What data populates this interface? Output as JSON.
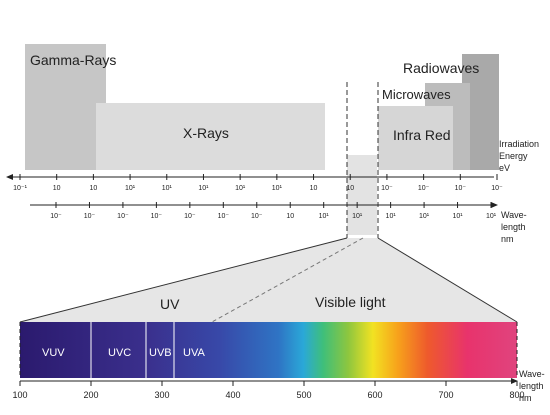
{
  "bands": {
    "gamma": "Gamma-Rays",
    "xrays": "X-Rays",
    "radio": "Radiowaves",
    "micro": "Microwaves",
    "infrared": "Infra Red"
  },
  "energy_axis": {
    "label": [
      "Irradiation",
      "Energy",
      "eV"
    ],
    "ticks": [
      "10⁻¹",
      "10⁻¹",
      "10⁻",
      "10⁻",
      "10⁻",
      "10⁻",
      "10⁻",
      "10⁻",
      "10⁻",
      "10⁻",
      "10⁻",
      "10⁻",
      "10⁻",
      "10⁻",
      "10⁻"
    ]
  },
  "energy_ticks_text": [
    "10⁻¹",
    "10",
    "10",
    "10¹",
    "10¹",
    "10¹",
    "10¹",
    "10¹",
    "10",
    "10",
    "10⁻",
    "10⁻",
    "10⁻",
    "10⁻"
  ],
  "wavelength_axis": {
    "label": [
      "Wave-",
      "length",
      "nm"
    ],
    "ticks": [
      "10⁻",
      "10⁻",
      "10⁻",
      "10⁻",
      "10⁻",
      "10⁻",
      "10⁻",
      "10",
      "10¹",
      "10¹",
      "10¹",
      "10¹",
      "10¹",
      "10¹"
    ]
  },
  "zoom": {
    "uv_label": "UV",
    "visible_label": "Visible light",
    "segments": [
      "VUV",
      "UVC",
      "UVB",
      "UVA"
    ],
    "axis_label": [
      "Wave-",
      "length",
      "nm"
    ],
    "ticks": [
      "100",
      "200",
      "300",
      "400",
      "500",
      "600",
      "700",
      "800"
    ]
  }
}
